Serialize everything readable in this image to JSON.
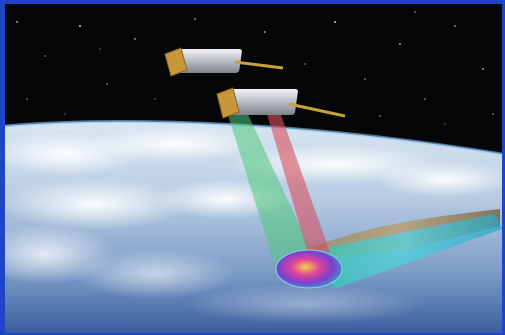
{
  "image": {
    "subject": "satellite-pair-radar-imaging-earth",
    "colors": {
      "frame": "#1e45c8",
      "space": "#050608",
      "ocean": "#3b64a8",
      "clouds": "#e8eef6",
      "satellite_body": "#cfd3d8",
      "solar_panel": "#c9973a",
      "beam_green": "#4fc97a",
      "beam_red": "#d8505e",
      "swath_teal": "#3fc9c2"
    }
  }
}
